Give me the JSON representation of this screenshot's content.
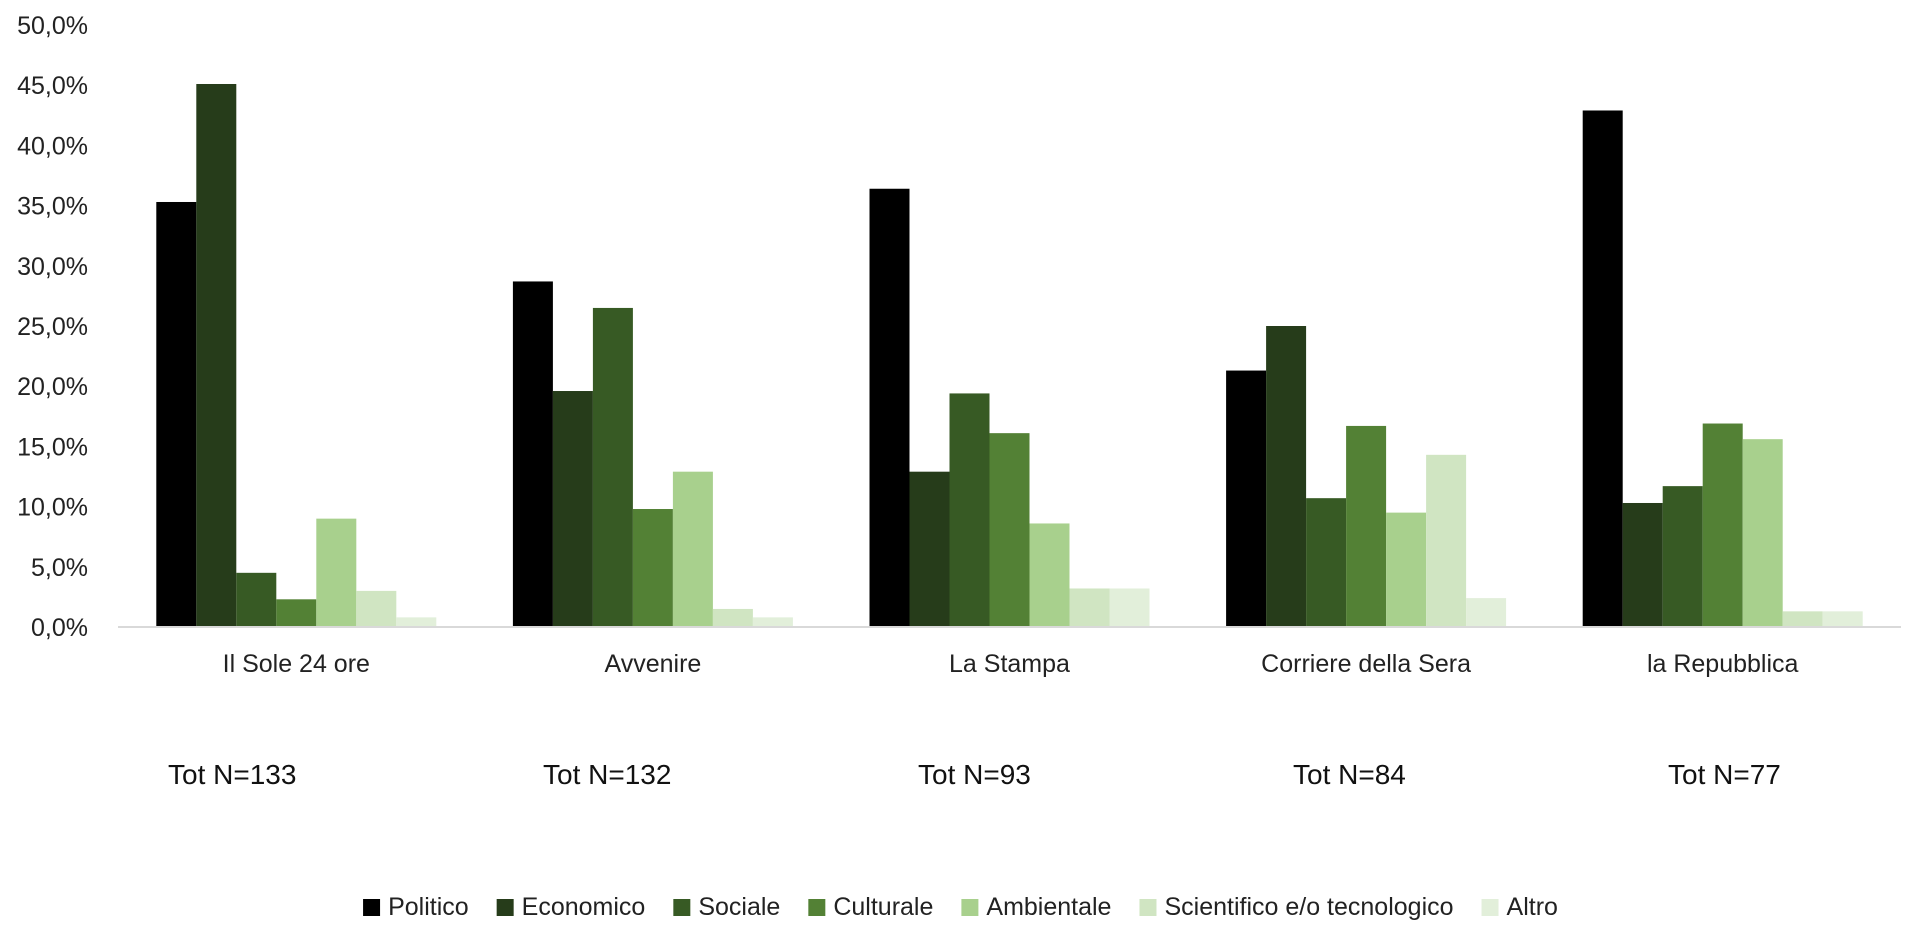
{
  "chart_data": {
    "type": "bar",
    "title": "",
    "xlabel": "",
    "ylabel": "",
    "ylim": [
      0,
      50
    ],
    "y_tick_labels": [
      "0,0%",
      "5,0%",
      "10,0%",
      "15,0%",
      "20,0%",
      "25,0%",
      "30,0%",
      "35,0%",
      "40,0%",
      "45,0%",
      "50,0%"
    ],
    "y_tick_values": [
      0,
      5,
      10,
      15,
      20,
      25,
      30,
      35,
      40,
      45,
      50
    ],
    "grid": false,
    "legend_position": "bottom",
    "categories": [
      "Il Sole 24 ore",
      "Avvenire",
      "La Stampa",
      "Corriere della Sera",
      "la Repubblica"
    ],
    "totals": [
      "Tot N=133",
      "Tot N=132",
      "Tot N=93",
      "Tot N=84",
      "Tot N=77"
    ],
    "series": [
      {
        "name": "Politico",
        "color": "#000000",
        "values": [
          35.3,
          28.7,
          36.4,
          21.3,
          42.9
        ]
      },
      {
        "name": "Economico",
        "color": "#263C1A",
        "values": [
          45.1,
          19.6,
          12.9,
          25.0,
          10.3
        ]
      },
      {
        "name": "Sociale",
        "color": "#375A24",
        "values": [
          4.5,
          26.5,
          19.4,
          10.7,
          11.7
        ]
      },
      {
        "name": "Culturale",
        "color": "#538135",
        "values": [
          2.3,
          9.8,
          16.1,
          16.7,
          16.9
        ]
      },
      {
        "name": "Ambientale",
        "color": "#A8D08D",
        "values": [
          9.0,
          12.9,
          8.6,
          9.5,
          15.6
        ]
      },
      {
        "name": "Scientifico e/o tecnologico",
        "color": "#D0E5C2",
        "values": [
          3.0,
          1.5,
          3.2,
          14.3,
          1.3
        ]
      },
      {
        "name": "Altro",
        "color": "#E2EFDA",
        "values": [
          0.8,
          0.8,
          3.2,
          2.4,
          1.3
        ]
      }
    ]
  }
}
